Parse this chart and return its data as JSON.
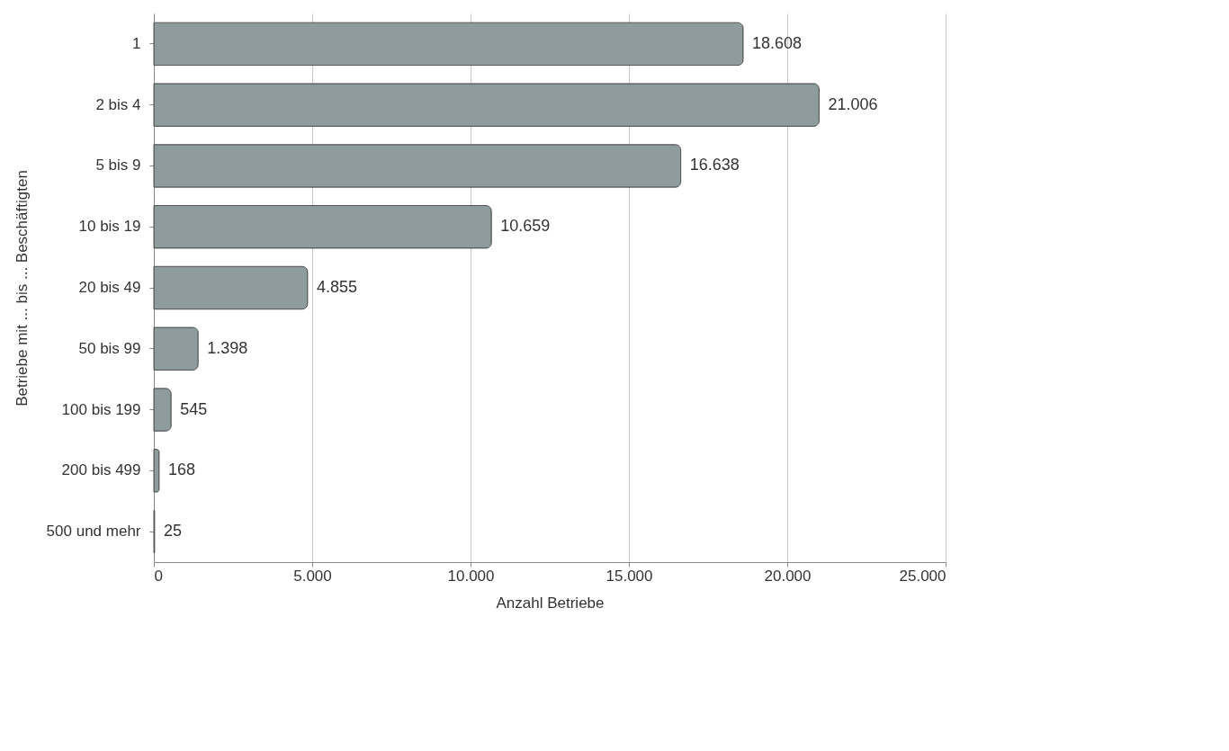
{
  "chart_data": {
    "type": "bar",
    "orientation": "horizontal",
    "xlabel": "Anzahl Betriebe",
    "ylabel": "Betriebe mit ... bis ... Beschäftigten",
    "categories": [
      "1",
      "2 bis 4",
      "5 bis 9",
      "10 bis 19",
      "20 bis 49",
      "50 bis 99",
      "100 bis 199",
      "200 bis 499",
      "500 und mehr"
    ],
    "values": [
      18608,
      21006,
      16638,
      10659,
      4855,
      1398,
      545,
      168,
      25
    ],
    "value_labels": [
      "18.608",
      "21.006",
      "16.638",
      "10.659",
      "4.855",
      "1.398",
      "545",
      "168",
      "25"
    ],
    "color": "#8f9c9e",
    "xlim": [
      0,
      25000
    ],
    "xticks": [
      0,
      {
        "value": 5000,
        "label": "5.000"
      },
      {
        "value": 10000,
        "label": "10.000"
      },
      {
        "value": 15000,
        "label": "15.000"
      },
      {
        "value": 20000,
        "label": "20.000"
      },
      {
        "value": 25000,
        "label": "25.000"
      }
    ],
    "grid": "x"
  }
}
